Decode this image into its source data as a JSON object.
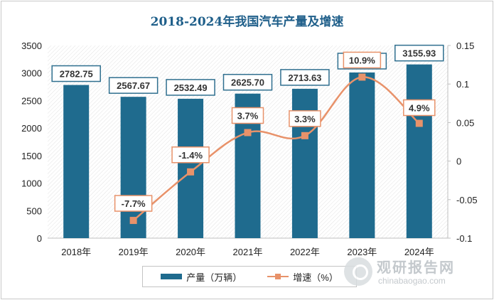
{
  "title": "2018-2024年我国汽车产量及增速",
  "chart_data": {
    "type": "bar+line",
    "categories": [
      "2018年",
      "2019年",
      "2020年",
      "2021年",
      "2022年",
      "2023年",
      "2024年"
    ],
    "series": [
      {
        "name": "产量（万辆）",
        "type": "bar",
        "axis": "left",
        "color": "#1f6b8e",
        "values": [
          2782.75,
          2567.67,
          2532.49,
          2625.7,
          2713.63,
          3009.89,
          3155.93
        ],
        "labels": [
          "2782.75",
          "2567.67",
          "2532.49",
          "2625.70",
          "2713.63",
          "3009.89",
          "3155.93"
        ]
      },
      {
        "name": "增速（%）",
        "type": "line",
        "axis": "right",
        "color": "#e8926a",
        "values": [
          null,
          -0.077,
          -0.014,
          0.037,
          0.033,
          0.109,
          0.049
        ],
        "labels": [
          "",
          "-7.7%",
          "-1.4%",
          "3.7%",
          "3.3%",
          "10.9%",
          "4.9%"
        ]
      }
    ],
    "y_left": {
      "min": 0,
      "max": 3500,
      "step": 500,
      "ticks": [
        "0",
        "500",
        "1000",
        "1500",
        "2000",
        "2500",
        "3000",
        "3500"
      ]
    },
    "y_right": {
      "min": -0.1,
      "max": 0.15,
      "step": 0.05,
      "ticks": [
        "-0.1",
        "-0.05",
        "0",
        "0.05",
        "0.1",
        "0.15"
      ]
    },
    "grid": false,
    "legend_position": "bottom"
  },
  "watermark": {
    "cn": "观研报告网",
    "en": "chinabaogao.com"
  }
}
